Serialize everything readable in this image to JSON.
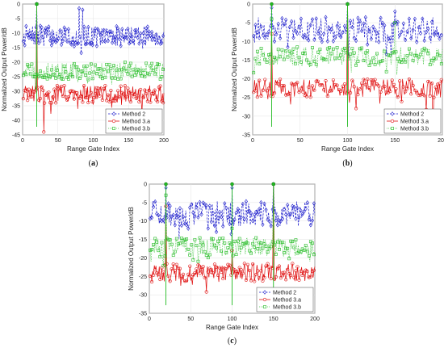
{
  "chart_data": [
    {
      "type": "line",
      "caption_prefix": "(",
      "caption_letter": "a",
      "caption_suffix": ")",
      "xlabel": "Range Gate Index",
      "ylabel": "Normalized Output Power/dB",
      "xlim": [
        0,
        200
      ],
      "ylim": [
        -45,
        0
      ],
      "xticks": [
        0,
        50,
        100,
        150,
        200
      ],
      "yticks": [
        0,
        -5,
        -10,
        -15,
        -20,
        -25,
        -30,
        -35,
        -40,
        -45
      ],
      "grid": true,
      "legend_position": "bottom-right",
      "targets": [
        20
      ],
      "series": [
        {
          "name": "Method 2",
          "color": "#1f1fcc",
          "marker": "diamond",
          "line": "dashed",
          "base": -11,
          "spread": 3.5,
          "peaks": [
            [
              20,
              0
            ],
            [
              80,
              -1.5
            ],
            [
              85,
              -2
            ]
          ]
        },
        {
          "name": "Method 3.a",
          "color": "#e01010",
          "marker": "circle",
          "line": "solid",
          "base": -31,
          "spread": 3.0,
          "peaks": [
            [
              20,
              0
            ],
            [
              30,
              -44
            ]
          ]
        },
        {
          "name": "Method 3.b",
          "color": "#22bb22",
          "marker": "square",
          "line": "dotted",
          "base": -23,
          "spread": 3.0,
          "peaks": [
            [
              20,
              0
            ]
          ]
        }
      ]
    },
    {
      "type": "line",
      "caption_prefix": "(",
      "caption_letter": "b",
      "caption_suffix": ")",
      "xlabel": "Range Gate Index",
      "ylabel": "Normalized Output Power/dB",
      "xlim": [
        0,
        200
      ],
      "ylim": [
        -35,
        0
      ],
      "xticks": [
        0,
        50,
        100,
        150,
        200
      ],
      "yticks": [
        0,
        -5,
        -10,
        -15,
        -20,
        -25,
        -30,
        -35
      ],
      "grid": true,
      "legend_position": "bottom-right",
      "targets": [
        20,
        100
      ],
      "series": [
        {
          "name": "Method 2",
          "color": "#1f1fcc",
          "marker": "diamond",
          "line": "dashed",
          "base": -7,
          "spread": 3.5,
          "peaks": [
            [
              20,
              -1
            ],
            [
              100,
              0
            ],
            [
              150,
              -2
            ]
          ]
        },
        {
          "name": "Method 3.a",
          "color": "#e01010",
          "marker": "circle",
          "line": "solid",
          "base": -22.5,
          "spread": 2.5,
          "peaks": [
            [
              20,
              -8
            ],
            [
              100,
              0
            ],
            [
              190,
              -33
            ]
          ]
        },
        {
          "name": "Method 3.b",
          "color": "#22bb22",
          "marker": "square",
          "line": "dotted",
          "base": -14,
          "spread": 2.5,
          "peaks": [
            [
              20,
              -4
            ],
            [
              100,
              0
            ],
            [
              150,
              -5
            ]
          ]
        }
      ]
    },
    {
      "type": "line",
      "caption_prefix": "(",
      "caption_letter": "c",
      "caption_suffix": ")",
      "xlabel": "Range Gate Index",
      "ylabel": "Normalized Output Power/dB",
      "xlim": [
        0,
        200
      ],
      "ylim": [
        -35,
        0
      ],
      "xticks": [
        0,
        50,
        100,
        150,
        200
      ],
      "yticks": [
        0,
        -5,
        -10,
        -15,
        -20,
        -25,
        -30,
        -35
      ],
      "grid": true,
      "legend_position": "bottom-right",
      "targets": [
        20,
        100,
        150
      ],
      "series": [
        {
          "name": "Method 2",
          "color": "#1f1fcc",
          "marker": "diamond",
          "line": "dashed",
          "base": -8,
          "spread": 3.5,
          "peaks": [
            [
              20,
              -1
            ],
            [
              100,
              -1
            ],
            [
              150,
              0
            ]
          ]
        },
        {
          "name": "Method 3.a",
          "color": "#e01010",
          "marker": "circle",
          "line": "solid",
          "base": -24,
          "spread": 2.5,
          "peaks": [
            [
              20,
              -6
            ],
            [
              100,
              -18
            ],
            [
              150,
              0
            ]
          ]
        },
        {
          "name": "Method 3.b",
          "color": "#22bb22",
          "marker": "square",
          "line": "dotted",
          "base": -17,
          "spread": 2.5,
          "peaks": [
            [
              20,
              -3
            ],
            [
              100,
              -12
            ],
            [
              150,
              0
            ]
          ]
        }
      ]
    }
  ]
}
